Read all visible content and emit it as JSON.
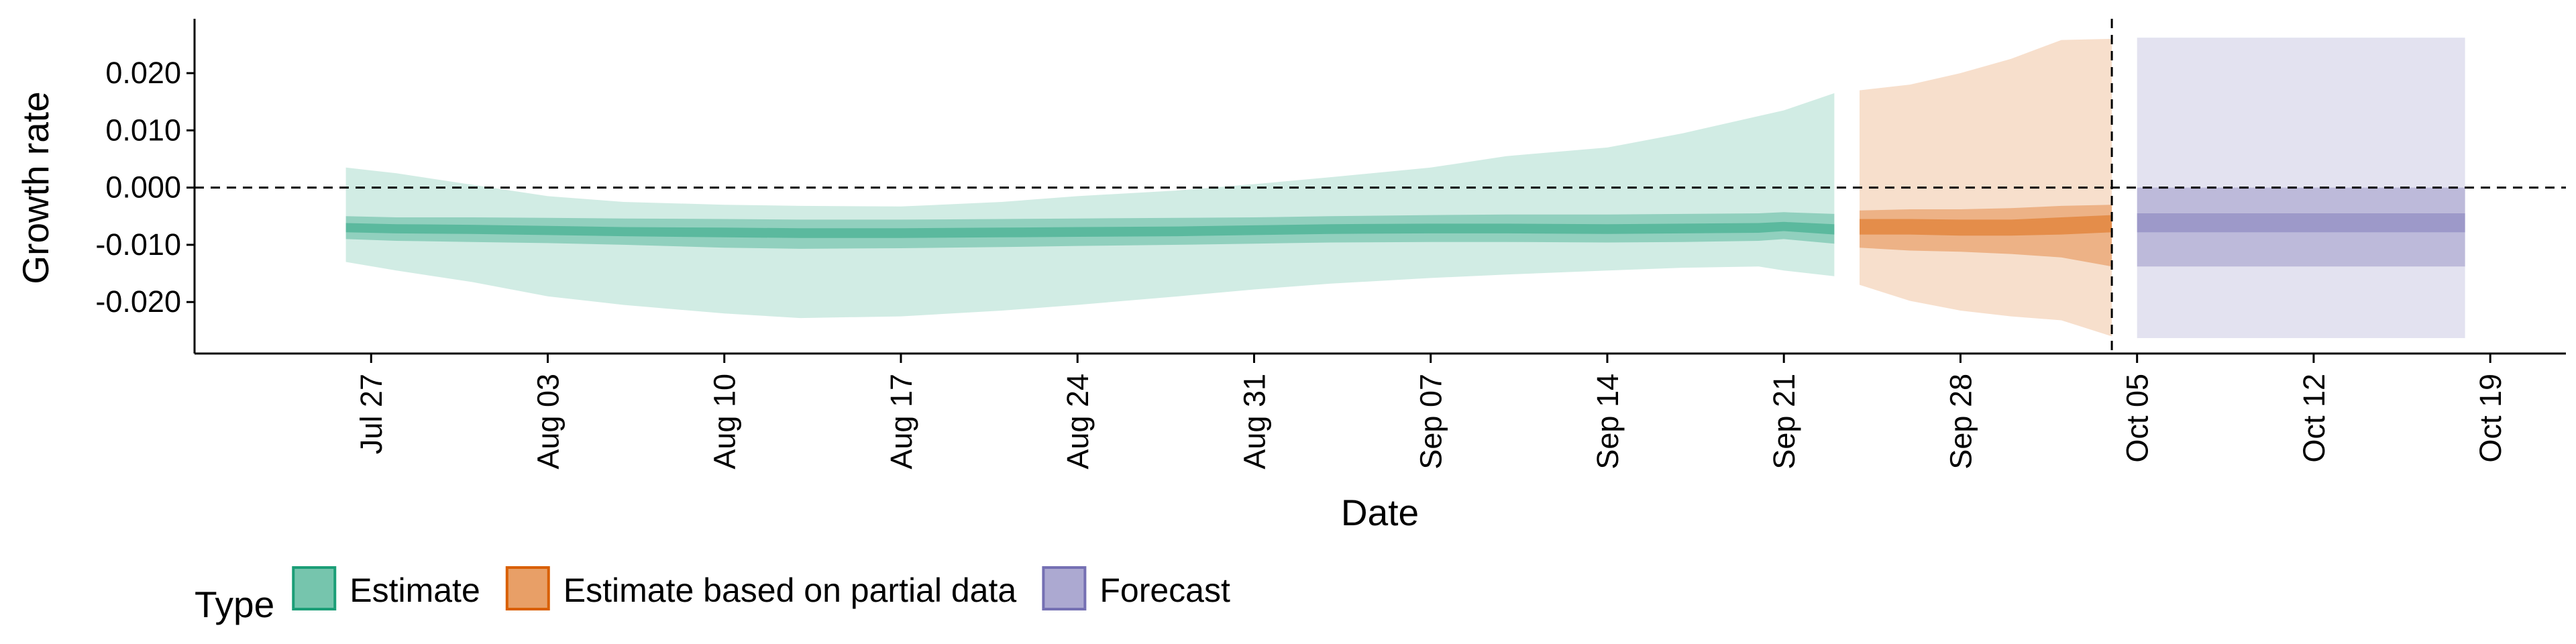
{
  "chart_data": {
    "type": "area",
    "xlabel": "Date",
    "ylabel": "Growth rate",
    "x_range": [
      "2020-07-20",
      "2020-10-22"
    ],
    "ylim": [
      -0.029,
      0.0295
    ],
    "y_ticks": [
      {
        "value": 0.02,
        "label": "0.020"
      },
      {
        "value": 0.01,
        "label": "0.010"
      },
      {
        "value": 0.0,
        "label": "0.000"
      },
      {
        "value": -0.01,
        "label": "-0.010"
      },
      {
        "value": -0.02,
        "label": "-0.020"
      }
    ],
    "x_ticks": [
      {
        "date": "2020-07-27",
        "label": "Jul 27"
      },
      {
        "date": "2020-08-03",
        "label": "Aug 03"
      },
      {
        "date": "2020-08-10",
        "label": "Aug 10"
      },
      {
        "date": "2020-08-17",
        "label": "Aug 17"
      },
      {
        "date": "2020-08-24",
        "label": "Aug 24"
      },
      {
        "date": "2020-08-31",
        "label": "Aug 31"
      },
      {
        "date": "2020-09-07",
        "label": "Sep 07"
      },
      {
        "date": "2020-09-14",
        "label": "Sep 14"
      },
      {
        "date": "2020-09-21",
        "label": "Sep 21"
      },
      {
        "date": "2020-09-28",
        "label": "Sep 28"
      },
      {
        "date": "2020-10-05",
        "label": "Oct 05"
      },
      {
        "date": "2020-10-12",
        "label": "Oct 12"
      },
      {
        "date": "2020-10-19",
        "label": "Oct 19"
      }
    ],
    "reference_lines": [
      {
        "axis": "y",
        "value": 0.0,
        "style": "dashed"
      },
      {
        "axis": "x",
        "date": "2020-10-04",
        "style": "dashed"
      }
    ],
    "grid": false,
    "legend": {
      "title": "Type",
      "position": "bottom",
      "entries": [
        {
          "label": "Estimate",
          "color": "#1b9e77"
        },
        {
          "label": "Estimate based on partial data",
          "color": "#d95f02"
        },
        {
          "label": "Forecast",
          "color": "#7570b3"
        }
      ]
    },
    "series": [
      {
        "name": "Estimate",
        "color": "#1b9e77",
        "points": [
          {
            "x": "2020-07-26",
            "median": -0.007,
            "lo90": -0.013,
            "hi90": 0.0035,
            "lo50": -0.009,
            "hi50": -0.005,
            "lo20": -0.0078,
            "hi20": -0.0062
          },
          {
            "x": "2020-07-28",
            "median": -0.0072,
            "lo90": -0.0145,
            "hi90": 0.0025,
            "lo50": -0.0093,
            "hi50": -0.0052,
            "lo20": -0.008,
            "hi20": -0.0064
          },
          {
            "x": "2020-07-31",
            "median": -0.0073,
            "lo90": -0.0165,
            "hi90": 0.0005,
            "lo50": -0.0095,
            "hi50": -0.0052,
            "lo20": -0.0081,
            "hi20": -0.0065
          },
          {
            "x": "2020-08-03",
            "median": -0.0075,
            "lo90": -0.019,
            "hi90": -0.0015,
            "lo50": -0.0097,
            "hi50": -0.0053,
            "lo20": -0.0083,
            "hi20": -0.0067
          },
          {
            "x": "2020-08-06",
            "median": -0.0077,
            "lo90": -0.0205,
            "hi90": -0.0025,
            "lo50": -0.01,
            "hi50": -0.0054,
            "lo20": -0.0085,
            "hi20": -0.0069
          },
          {
            "x": "2020-08-10",
            "median": -0.0078,
            "lo90": -0.022,
            "hi90": -0.003,
            "lo50": -0.0105,
            "hi50": -0.0055,
            "lo20": -0.0087,
            "hi20": -0.007
          },
          {
            "x": "2020-08-13",
            "median": -0.0079,
            "lo90": -0.0228,
            "hi90": -0.0032,
            "lo50": -0.0107,
            "hi50": -0.0056,
            "lo20": -0.0088,
            "hi20": -0.0071
          },
          {
            "x": "2020-08-17",
            "median": -0.0079,
            "lo90": -0.0225,
            "hi90": -0.0033,
            "lo50": -0.0106,
            "hi50": -0.0056,
            "lo20": -0.0088,
            "hi20": -0.0071
          },
          {
            "x": "2020-08-21",
            "median": -0.0078,
            "lo90": -0.0215,
            "hi90": -0.0025,
            "lo50": -0.0104,
            "hi50": -0.0055,
            "lo20": -0.0087,
            "hi20": -0.007
          },
          {
            "x": "2020-08-24",
            "median": -0.0077,
            "lo90": -0.0205,
            "hi90": -0.0015,
            "lo50": -0.0102,
            "hi50": -0.0054,
            "lo20": -0.0086,
            "hi20": -0.0069
          },
          {
            "x": "2020-08-28",
            "median": -0.0076,
            "lo90": -0.019,
            "hi90": -0.0005,
            "lo50": -0.01,
            "hi50": -0.0053,
            "lo20": -0.0085,
            "hi20": -0.0068
          },
          {
            "x": "2020-08-31",
            "median": -0.0075,
            "lo90": -0.0178,
            "hi90": 0.0006,
            "lo50": -0.0098,
            "hi50": -0.0052,
            "lo20": -0.0083,
            "hi20": -0.0066
          },
          {
            "x": "2020-09-03",
            "median": -0.0073,
            "lo90": -0.0168,
            "hi90": 0.0018,
            "lo50": -0.0096,
            "hi50": -0.005,
            "lo20": -0.0081,
            "hi20": -0.0064
          },
          {
            "x": "2020-09-07",
            "median": -0.0072,
            "lo90": -0.0158,
            "hi90": 0.0035,
            "lo50": -0.0095,
            "hi50": -0.0048,
            "lo20": -0.008,
            "hi20": -0.0063
          },
          {
            "x": "2020-09-10",
            "median": -0.0072,
            "lo90": -0.0152,
            "hi90": 0.0055,
            "lo50": -0.0095,
            "hi50": -0.0047,
            "lo20": -0.008,
            "hi20": -0.0063
          },
          {
            "x": "2020-09-14",
            "median": -0.0073,
            "lo90": -0.0145,
            "hi90": 0.007,
            "lo50": -0.0096,
            "hi50": -0.0047,
            "lo20": -0.0081,
            "hi20": -0.0064
          },
          {
            "x": "2020-09-17",
            "median": -0.0072,
            "lo90": -0.014,
            "hi90": 0.0095,
            "lo50": -0.0095,
            "hi50": -0.0046,
            "lo20": -0.008,
            "hi20": -0.0063
          },
          {
            "x": "2020-09-20",
            "median": -0.0071,
            "lo90": -0.0138,
            "hi90": 0.0125,
            "lo50": -0.0093,
            "hi50": -0.0045,
            "lo20": -0.0079,
            "hi20": -0.0062
          },
          {
            "x": "2020-09-21",
            "median": -0.0068,
            "lo90": -0.0145,
            "hi90": 0.0135,
            "lo50": -0.009,
            "hi50": -0.0043,
            "lo20": -0.0076,
            "hi20": -0.006
          },
          {
            "x": "2020-09-23",
            "median": -0.0072,
            "lo90": -0.0155,
            "hi90": 0.0165,
            "lo50": -0.0098,
            "hi50": -0.0046,
            "lo20": -0.0082,
            "hi20": -0.0064
          }
        ]
      },
      {
        "name": "Estimate based on partial data",
        "color": "#d95f02",
        "points": [
          {
            "x": "2020-09-24",
            "median": -0.0068,
            "lo90": -0.017,
            "hi90": 0.017,
            "lo50": -0.0105,
            "hi50": -0.004,
            "lo20": -0.0082,
            "hi20": -0.0055
          },
          {
            "x": "2020-09-26",
            "median": -0.0068,
            "lo90": -0.0198,
            "hi90": 0.018,
            "lo50": -0.011,
            "hi50": -0.0038,
            "lo20": -0.0082,
            "hi20": -0.0055
          },
          {
            "x": "2020-09-28",
            "median": -0.007,
            "lo90": -0.0215,
            "hi90": 0.02,
            "lo50": -0.0112,
            "hi50": -0.0038,
            "lo20": -0.0084,
            "hi20": -0.0056
          },
          {
            "x": "2020-09-30",
            "median": -0.007,
            "lo90": -0.0225,
            "hi90": 0.0225,
            "lo50": -0.0116,
            "hi50": -0.0036,
            "lo20": -0.0084,
            "hi20": -0.0056
          },
          {
            "x": "2020-10-02",
            "median": -0.0067,
            "lo90": -0.0232,
            "hi90": 0.0258,
            "lo50": -0.0122,
            "hi50": -0.0032,
            "lo20": -0.0082,
            "hi20": -0.0052
          },
          {
            "x": "2020-10-04",
            "median": -0.0063,
            "lo90": -0.026,
            "hi90": 0.026,
            "lo50": -0.0138,
            "hi50": -0.003,
            "lo20": -0.0078,
            "hi20": -0.0048
          }
        ]
      },
      {
        "name": "Forecast",
        "color": "#7570b3",
        "points": [
          {
            "x": "2020-10-05",
            "median": -0.0063,
            "lo90": -0.0263,
            "hi90": 0.0262,
            "lo50": -0.0138,
            "hi50": 0.0,
            "lo20": -0.0078,
            "hi20": -0.0045
          },
          {
            "x": "2020-10-18",
            "median": -0.0063,
            "lo90": -0.0263,
            "hi90": 0.0262,
            "lo50": -0.0138,
            "hi50": 0.0,
            "lo20": -0.0078,
            "hi20": -0.0045
          }
        ]
      }
    ]
  }
}
